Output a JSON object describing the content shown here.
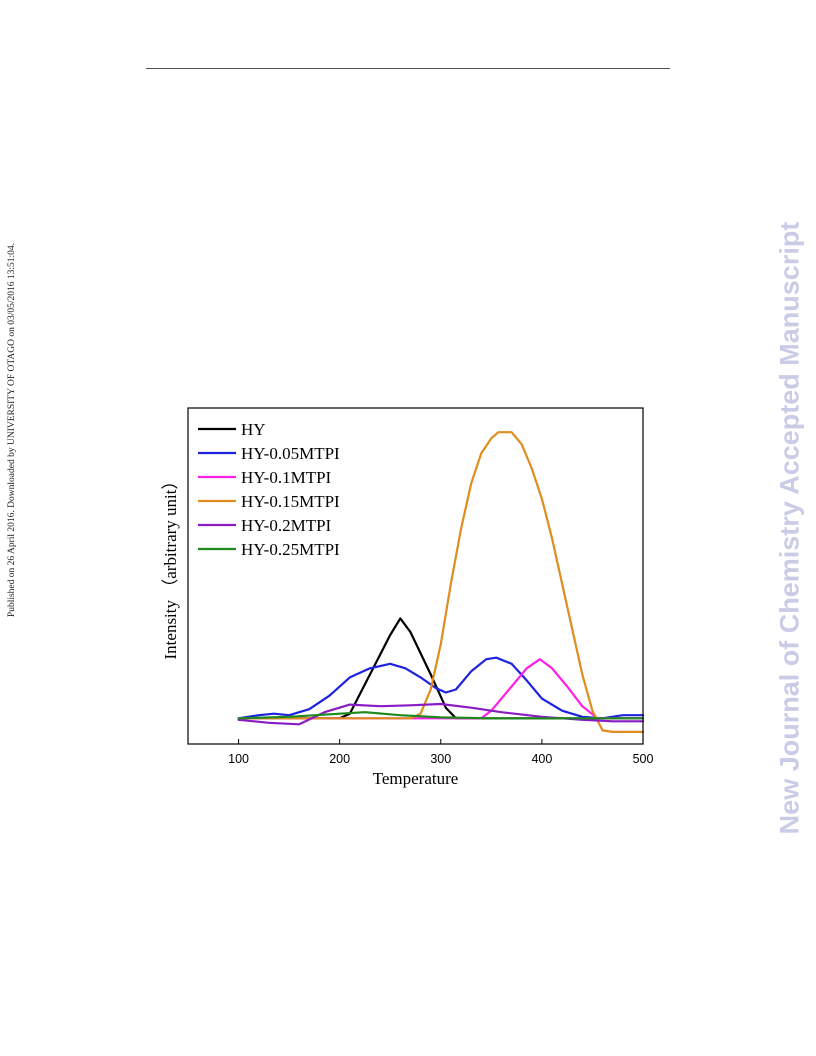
{
  "page": {
    "side_note": "Published on 26 April 2016. Downloaded by UNIVERSITY OF OTAGO on 03/05/2016 13:51:04.",
    "watermark": "New Journal of Chemistry Accepted Manuscript"
  },
  "chart_data": {
    "type": "line",
    "title": "",
    "xlabel": "Temperature",
    "ylabel": "Intensity （arbitrary unit）",
    "xlim": [
      50,
      500
    ],
    "ylim": [
      -0.3,
      10.8
    ],
    "xticks": [
      100,
      200,
      300,
      400,
      500
    ],
    "y_tick_labels_shown": false,
    "grid": false,
    "legend_position": "top-left",
    "series": [
      {
        "name": "HY",
        "color": "#000000",
        "x": [
          100,
          150,
          200,
          210,
          230,
          250,
          260,
          270,
          290,
          305,
          315,
          340,
          400,
          500
        ],
        "y": [
          0.55,
          0.55,
          0.55,
          0.7,
          2.0,
          3.3,
          3.85,
          3.4,
          2.0,
          0.9,
          0.55,
          0.55,
          0.55,
          0.55
        ]
      },
      {
        "name": "HY-0.05MTPI",
        "color": "#1c22e0",
        "x": [
          100,
          120,
          135,
          150,
          170,
          190,
          210,
          230,
          250,
          265,
          280,
          295,
          305,
          315,
          330,
          345,
          355,
          370,
          385,
          400,
          420,
          440,
          460,
          480,
          500
        ],
        "y": [
          0.55,
          0.65,
          0.7,
          0.65,
          0.85,
          1.3,
          1.9,
          2.2,
          2.35,
          2.2,
          1.9,
          1.55,
          1.4,
          1.5,
          2.1,
          2.5,
          2.55,
          2.35,
          1.8,
          1.2,
          0.8,
          0.6,
          0.55,
          0.65,
          0.65
        ]
      },
      {
        "name": "HY-0.1MTPI",
        "color": "#ff1ee6",
        "x": [
          100,
          200,
          300,
          340,
          350,
          370,
          385,
          398,
          410,
          425,
          440,
          455,
          470,
          500
        ],
        "y": [
          0.55,
          0.55,
          0.55,
          0.55,
          0.8,
          1.6,
          2.2,
          2.5,
          2.2,
          1.6,
          0.95,
          0.55,
          0.55,
          0.55
        ]
      },
      {
        "name": "HY-0.15MTPI",
        "color": "#e08c1e",
        "x": [
          100,
          200,
          270,
          280,
          290,
          300,
          310,
          320,
          330,
          340,
          350,
          357,
          370,
          380,
          390,
          400,
          410,
          420,
          430,
          440,
          450,
          460,
          470,
          480,
          500
        ],
        "y": [
          0.55,
          0.55,
          0.55,
          0.7,
          1.5,
          3.0,
          5.0,
          6.8,
          8.3,
          9.3,
          9.8,
          10.0,
          10.0,
          9.6,
          8.8,
          7.8,
          6.5,
          5.0,
          3.5,
          2.0,
          0.8,
          0.15,
          0.1,
          0.1,
          0.1
        ]
      },
      {
        "name": "HY-0.2MTPI",
        "color": "#8a1cc4",
        "x": [
          100,
          130,
          160,
          185,
          210,
          240,
          270,
          300,
          330,
          360,
          400,
          440,
          470,
          500
        ],
        "y": [
          0.5,
          0.4,
          0.35,
          0.75,
          1.0,
          0.95,
          0.98,
          1.02,
          0.9,
          0.75,
          0.6,
          0.5,
          0.45,
          0.45
        ]
      },
      {
        "name": "HY-0.25MTPI",
        "color": "#1e8a1e",
        "x": [
          100,
          150,
          200,
          225,
          260,
          300,
          350,
          400,
          450,
          500
        ],
        "y": [
          0.55,
          0.6,
          0.7,
          0.75,
          0.65,
          0.58,
          0.55,
          0.55,
          0.55,
          0.55
        ]
      }
    ]
  }
}
